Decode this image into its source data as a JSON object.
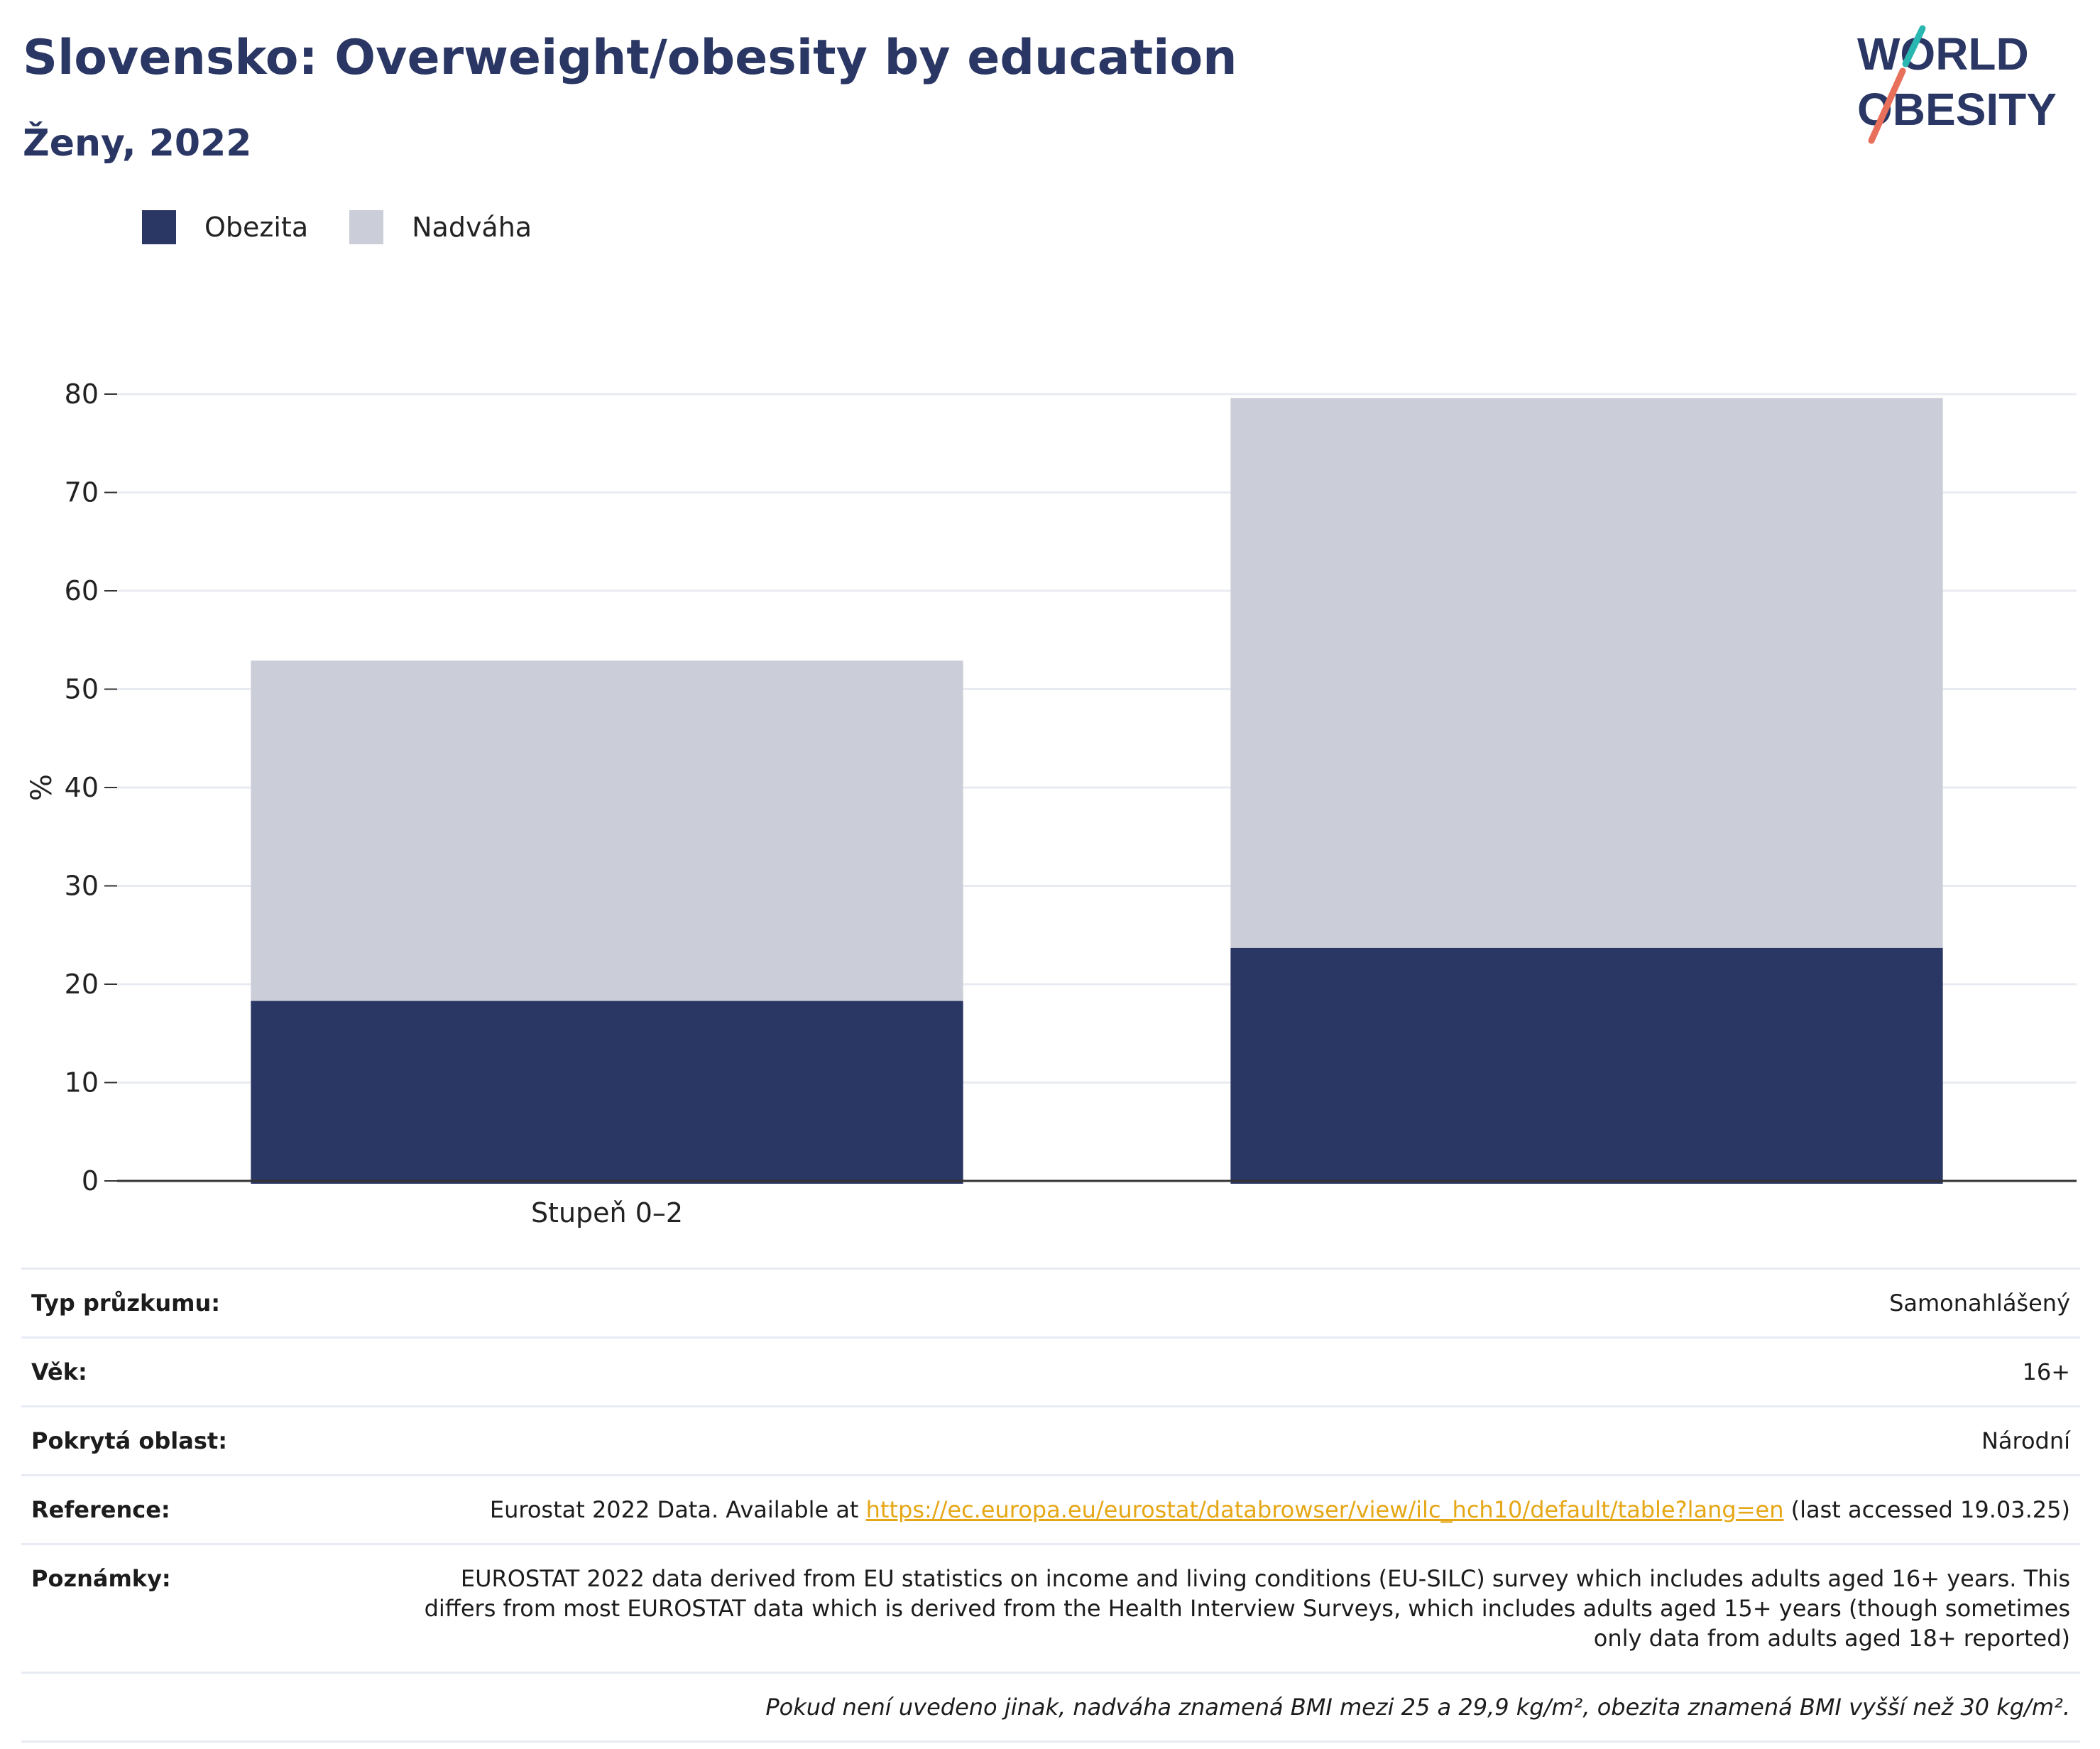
{
  "header": {
    "title": "Slovensko: Overweight/obesity by education",
    "subtitle": "Ženy, 2022"
  },
  "logo": {
    "line1": "WORLD",
    "line2": "OBESITY"
  },
  "legend": {
    "items": [
      {
        "label": "Obezita",
        "color": "#2a3663"
      },
      {
        "label": "Nadváha",
        "color": "#cbcdd8"
      }
    ]
  },
  "chart_data": {
    "type": "bar",
    "stacked": true,
    "categories": [
      "Stupeň 0–2",
      ""
    ],
    "series": [
      {
        "name": "Obezita",
        "color": "#2a3663",
        "values": [
          18.3,
          23.7
        ]
      },
      {
        "name": "Nadváha",
        "color": "#cbcdd8",
        "values": [
          34.6,
          55.9
        ]
      }
    ],
    "ylabel": "%",
    "ylim": [
      0,
      80
    ],
    "yticks": [
      0,
      10,
      20,
      30,
      40,
      50,
      60,
      70,
      80
    ],
    "grid": true
  },
  "meta": {
    "survey_label": "Typ průzkumu:",
    "survey_value": "Samonahlášený",
    "age_label": "Věk:",
    "age_value": "16+",
    "area_label": "Pokrytá oblast:",
    "area_value": "Národní",
    "ref_label": "Reference:",
    "ref_prefix": "Eurostat 2022 Data. Available at ",
    "ref_link": "https://ec.europa.eu/eurostat/databrowser/view/ilc_hch10/default/table?lang=en",
    "ref_suffix": " (last accessed 19.03.25)",
    "notes_label": "Poznámky:",
    "notes_value": "EUROSTAT 2022 data derived from EU statistics on income and living conditions (EU-SILC) survey which includes adults aged 16+ years. This differs from most EUROSTAT data which is derived from the Health Interview Surveys, which includes adults aged 15+ years (though sometimes only data from adults aged 18+ reported)",
    "footnote": "Pokud není uvedeno jinak, nadváha znamená BMI mezi 25 a 29,9 kg/m², obezita znamená BMI vyšší než 30 kg/m²."
  }
}
